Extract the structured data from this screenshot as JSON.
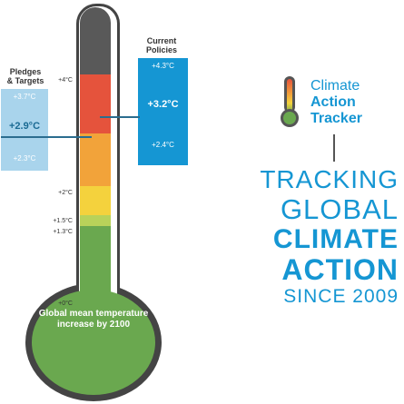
{
  "ticks": [
    "+4°C",
    "+2°C",
    "+1.5°C",
    "+1.3°C",
    "+0°C"
  ],
  "bulb_text": "Global mean temperature increase by 2100",
  "pledges": {
    "title_line1": "Pledges",
    "title_line2": "& Targets",
    "high": "+3.7°C",
    "mid": "+2.9°C",
    "low": "+2.3°C"
  },
  "current": {
    "title_line1": "Current",
    "title_line2": "Policies",
    "high": "+4.3°C",
    "mid": "+3.2°C",
    "low": "+2.4°C"
  },
  "logo": {
    "line1": "Climate",
    "line2": "Action",
    "line3": "Tracker"
  },
  "tagline": {
    "line1": "TRACKING",
    "line2": "GLOBAL",
    "line3": "CLIMATE",
    "line4": "ACTION",
    "line5": "SINCE 2009"
  },
  "colors": {
    "accent": "#1596d3",
    "pledge_box": "#a9d4ec",
    "current_box": "#1596d3",
    "bulb": "#6aa84f"
  }
}
